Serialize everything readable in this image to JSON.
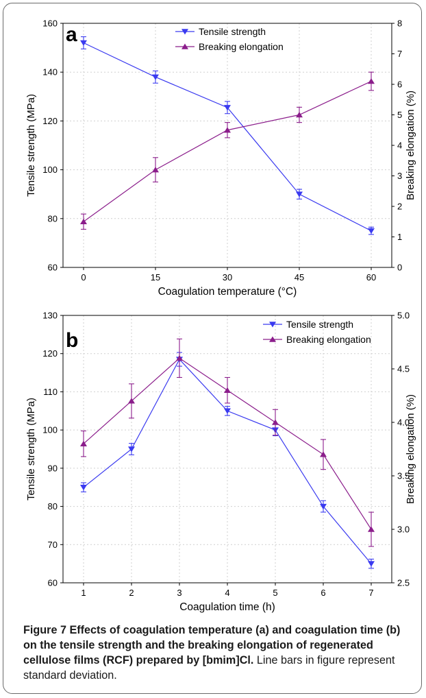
{
  "chart_data": [
    {
      "type": "line",
      "panel_label": "a",
      "xlabel": "Coagulation temperature (°C)",
      "ylabel": "Tensile strength (MPa)",
      "y2label": "Breaking elongation (%)",
      "x": [
        0,
        15,
        30,
        45,
        60
      ],
      "xticks": [
        "0",
        "15",
        "30",
        "45",
        "60"
      ],
      "ylim": [
        60,
        160
      ],
      "yticks": [
        "60",
        "80",
        "100",
        "120",
        "140",
        "160"
      ],
      "y2lim": [
        0,
        8
      ],
      "y2ticks": [
        "0",
        "1",
        "2",
        "3",
        "4",
        "5",
        "6",
        "7",
        "8"
      ],
      "legend_position": "top-center",
      "series": [
        {
          "name": "Tensile strength",
          "axis": "left",
          "marker": "triangle-down",
          "color": "#3a3af0",
          "values": [
            152,
            138,
            125.5,
            90,
            75
          ],
          "errors": [
            2.5,
            2.5,
            2.5,
            2,
            1.5
          ]
        },
        {
          "name": "Breaking elongation",
          "axis": "right",
          "marker": "triangle-up",
          "color": "#8b1d8b",
          "values": [
            1.5,
            3.2,
            4.5,
            5.0,
            6.1
          ],
          "errors": [
            0.25,
            0.4,
            0.25,
            0.25,
            0.3
          ]
        }
      ]
    },
    {
      "type": "line",
      "panel_label": "b",
      "xlabel": "Coagulation time (h)",
      "ylabel": "Tensile strength (MPa)",
      "y2label": "Breaking elongation (%)",
      "x": [
        1,
        2,
        3,
        4,
        5,
        6,
        7
      ],
      "xticks": [
        "1",
        "2",
        "3",
        "4",
        "5",
        "6",
        "7"
      ],
      "ylim": [
        60,
        130
      ],
      "yticks": [
        "60",
        "70",
        "80",
        "90",
        "100",
        "110",
        "120",
        "130"
      ],
      "y2lim": [
        2.5,
        5.0
      ],
      "y2ticks": [
        "2.5",
        "3.0",
        "3.5",
        "4.0",
        "4.5",
        "5.0"
      ],
      "legend_position": "top-right",
      "series": [
        {
          "name": "Tensile strength",
          "axis": "left",
          "marker": "triangle-down",
          "color": "#3a3af0",
          "values": [
            85,
            95,
            118.5,
            105,
            100,
            80,
            65
          ],
          "errors": [
            1.2,
            1.5,
            1.8,
            1.2,
            1.5,
            1.5,
            1.2
          ]
        },
        {
          "name": "Breaking elongation",
          "axis": "right",
          "marker": "triangle-up",
          "color": "#8b1d8b",
          "values": [
            3.8,
            4.2,
            4.6,
            4.3,
            4.0,
            3.7,
            3.0
          ],
          "errors": [
            0.12,
            0.16,
            0.18,
            0.12,
            0.12,
            0.14,
            0.16
          ]
        }
      ]
    }
  ],
  "caption": {
    "bold": "Figure 7 Effects of coagulation temperature (a) and coagulation time (b) on the tensile strength and the breaking elongation of regenerated cellulose films (RCF) prepared by [bmim]Cl.",
    "normal": " Line bars in figure represent standard deviation."
  }
}
